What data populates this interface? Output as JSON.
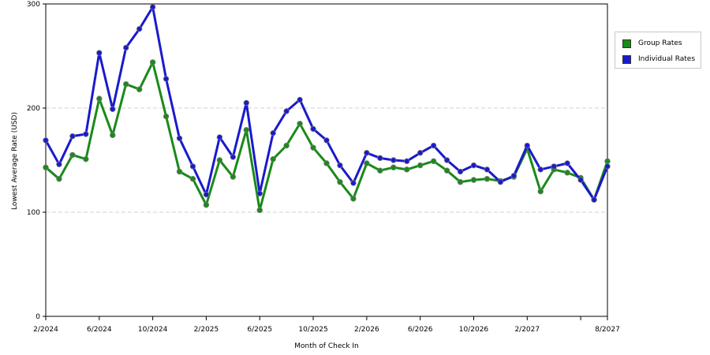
{
  "chart_data": {
    "type": "line",
    "title": "",
    "xlabel": "Month of Check In",
    "ylabel": "Lowest Average Rate (USD)",
    "ylim": [
      0,
      300
    ],
    "yticks": [
      "0",
      "100",
      "200",
      "300"
    ],
    "x_tick_labels": [
      "2/2024",
      "6/2024",
      "10/2024",
      "2/2025",
      "6/2025",
      "10/2025",
      "2/2026",
      "6/2026",
      "10/2026",
      "2/2027",
      "",
      "8/2027"
    ],
    "x_tick_month_index": [
      0,
      4,
      8,
      12,
      16,
      20,
      24,
      28,
      32,
      36,
      40,
      42
    ],
    "grid": true,
    "legend_position": "right",
    "series": [
      {
        "name": "Group Rates",
        "color": "#1a8a1a",
        "values": [
          143,
          132,
          155,
          151,
          209,
          174,
          223,
          218,
          244,
          192,
          139,
          132,
          107,
          150,
          134,
          179,
          102,
          151,
          164,
          185,
          162,
          147,
          129,
          113,
          147,
          140,
          143,
          141,
          145,
          149,
          140,
          129,
          131,
          132,
          130,
          134,
          161,
          120,
          141,
          138,
          133,
          112,
          149
        ]
      },
      {
        "name": "Individual Rates",
        "color": "#1a1acc",
        "values": [
          169,
          146,
          173,
          175,
          253,
          199,
          258,
          276,
          297,
          228,
          171,
          144,
          117,
          172,
          153,
          205,
          118,
          176,
          197,
          208,
          180,
          169,
          145,
          128,
          157,
          152,
          150,
          149,
          157,
          164,
          150,
          139,
          145,
          141,
          129,
          135,
          164,
          141,
          144,
          147,
          131,
          112,
          144
        ]
      }
    ]
  }
}
